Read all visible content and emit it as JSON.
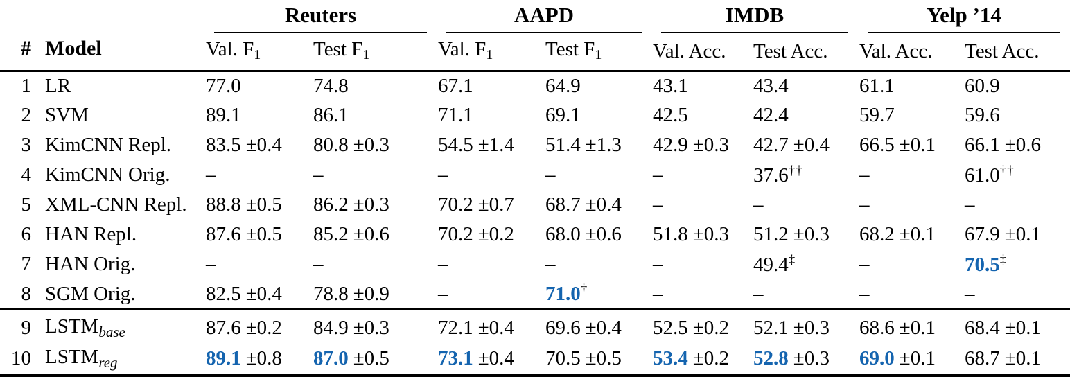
{
  "colors": {
    "accent_blue": "#1464af",
    "ink": "#000000"
  },
  "header": {
    "num": "#",
    "model": "Model",
    "groups": [
      {
        "label": "Reuters",
        "cols": [
          {
            "text": "Val. F",
            "sub": "1"
          },
          {
            "text": "Test F",
            "sub": "1"
          }
        ]
      },
      {
        "label": "AAPD",
        "cols": [
          {
            "text": "Val. F",
            "sub": "1"
          },
          {
            "text": "Test F",
            "sub": "1"
          }
        ]
      },
      {
        "label": "IMDB",
        "cols": [
          {
            "text": "Val. Acc.",
            "sub": ""
          },
          {
            "text": "Test Acc.",
            "sub": ""
          }
        ]
      },
      {
        "label": "Yelp ’14",
        "cols": [
          {
            "text": "Val. Acc.",
            "sub": ""
          },
          {
            "text": "Test Acc.",
            "sub": ""
          }
        ]
      }
    ]
  },
  "rows": [
    {
      "num": "1",
      "model": "LR",
      "model_sub": "",
      "section": 1,
      "cells": [
        {
          "v": "77.0"
        },
        {
          "v": "74.8"
        },
        {
          "v": "67.1"
        },
        {
          "v": "64.9"
        },
        {
          "v": "43.1"
        },
        {
          "v": "43.4"
        },
        {
          "v": "61.1"
        },
        {
          "v": "60.9"
        }
      ]
    },
    {
      "num": "2",
      "model": "SVM",
      "model_sub": "",
      "section": 1,
      "cells": [
        {
          "v": "89.1"
        },
        {
          "v": "86.1"
        },
        {
          "v": "71.1"
        },
        {
          "v": "69.1"
        },
        {
          "v": "42.5"
        },
        {
          "v": "42.4"
        },
        {
          "v": "59.7"
        },
        {
          "v": "59.6"
        }
      ]
    },
    {
      "num": "3",
      "model": "KimCNN Repl.",
      "model_sub": "",
      "section": 1,
      "cells": [
        {
          "v": "83.5",
          "pm": "±0.4"
        },
        {
          "v": "80.8",
          "pm": "±0.3"
        },
        {
          "v": "54.5",
          "pm": "±1.4"
        },
        {
          "v": "51.4",
          "pm": "±1.3"
        },
        {
          "v": "42.9",
          "pm": "±0.3"
        },
        {
          "v": "42.7",
          "pm": "±0.4"
        },
        {
          "v": "66.5",
          "pm": "±0.1"
        },
        {
          "v": "66.1",
          "pm": "±0.6"
        }
      ]
    },
    {
      "num": "4",
      "model": "KimCNN Orig.",
      "model_sub": "",
      "section": 1,
      "cells": [
        {
          "v": "–"
        },
        {
          "v": "–"
        },
        {
          "v": "–"
        },
        {
          "v": "–"
        },
        {
          "v": "–"
        },
        {
          "v": "37.6",
          "sup": "††"
        },
        {
          "v": "–"
        },
        {
          "v": "61.0",
          "sup": "††"
        }
      ]
    },
    {
      "num": "5",
      "model": "XML-CNN Repl.",
      "model_sub": "",
      "section": 1,
      "cells": [
        {
          "v": "88.8",
          "pm": "±0.5"
        },
        {
          "v": "86.2",
          "pm": "±0.3"
        },
        {
          "v": "70.2",
          "pm": "±0.7"
        },
        {
          "v": "68.7",
          "pm": "±0.4"
        },
        {
          "v": "–"
        },
        {
          "v": "–"
        },
        {
          "v": "–"
        },
        {
          "v": "–"
        }
      ]
    },
    {
      "num": "6",
      "model": "HAN Repl.",
      "model_sub": "",
      "section": 1,
      "cells": [
        {
          "v": "87.6",
          "pm": "±0.5"
        },
        {
          "v": "85.2",
          "pm": "±0.6"
        },
        {
          "v": "70.2",
          "pm": "±0.2"
        },
        {
          "v": "68.0",
          "pm": "±0.6"
        },
        {
          "v": "51.8",
          "pm": "±0.3"
        },
        {
          "v": "51.2",
          "pm": "±0.3"
        },
        {
          "v": "68.2",
          "pm": "±0.1"
        },
        {
          "v": "67.9",
          "pm": "±0.1"
        }
      ]
    },
    {
      "num": "7",
      "model": "HAN Orig.",
      "model_sub": "",
      "section": 1,
      "cells": [
        {
          "v": "–"
        },
        {
          "v": "–"
        },
        {
          "v": "–"
        },
        {
          "v": "–"
        },
        {
          "v": "–"
        },
        {
          "v": "49.4",
          "sup": "‡"
        },
        {
          "v": "–"
        },
        {
          "v": "70.5",
          "sup": "‡",
          "hl": true
        }
      ]
    },
    {
      "num": "8",
      "model": "SGM Orig.",
      "model_sub": "",
      "section": 1,
      "cells": [
        {
          "v": "82.5",
          "pm": "±0.4"
        },
        {
          "v": "78.8",
          "pm": "±0.9"
        },
        {
          "v": "–"
        },
        {
          "v": "71.0",
          "sup": "†",
          "hl": true
        },
        {
          "v": "–"
        },
        {
          "v": "–"
        },
        {
          "v": "–"
        },
        {
          "v": "–"
        }
      ]
    },
    {
      "num": "9",
      "model": "LSTM",
      "model_sub": "base",
      "section": 2,
      "cells": [
        {
          "v": "87.6",
          "pm": "±0.2"
        },
        {
          "v": "84.9",
          "pm": "±0.3"
        },
        {
          "v": "72.1",
          "pm": "±0.4"
        },
        {
          "v": "69.6",
          "pm": "±0.4"
        },
        {
          "v": "52.5",
          "pm": "±0.2"
        },
        {
          "v": "52.1",
          "pm": "±0.3"
        },
        {
          "v": "68.6",
          "pm": "±0.1"
        },
        {
          "v": "68.4",
          "pm": "±0.1"
        }
      ]
    },
    {
      "num": "10",
      "model": "LSTM",
      "model_sub": "reg",
      "section": 2,
      "cells": [
        {
          "v": "89.1",
          "pm": "±0.8",
          "hl": true
        },
        {
          "v": "87.0",
          "pm": "±0.5",
          "hl": true
        },
        {
          "v": "73.1",
          "pm": "±0.4",
          "hl": true
        },
        {
          "v": "70.5",
          "pm": "±0.5"
        },
        {
          "v": "53.4",
          "pm": "±0.2",
          "hl": true
        },
        {
          "v": "52.8",
          "pm": "±0.3",
          "hl": true
        },
        {
          "v": "69.0",
          "pm": "±0.1",
          "hl": true
        },
        {
          "v": "68.7",
          "pm": "±0.1"
        }
      ]
    }
  ]
}
